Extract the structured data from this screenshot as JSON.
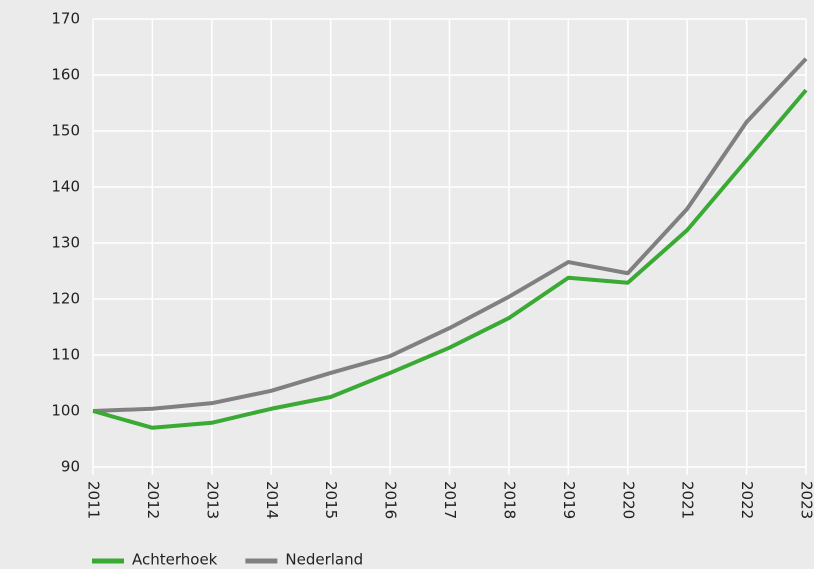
{
  "chart_data": {
    "type": "line",
    "x": [
      "2011",
      "2012",
      "2013",
      "2014",
      "2015",
      "2016",
      "2017",
      "2018",
      "2019",
      "2020",
      "2021",
      "2022",
      "2023"
    ],
    "series": [
      {
        "name": "Achterhoek",
        "color": "#3aaa35",
        "values": [
          100,
          97.0,
          97.9,
          100.4,
          102.5,
          106.8,
          111.3,
          116.6,
          123.8,
          122.9,
          132.3,
          144.8,
          157.3
        ]
      },
      {
        "name": "Nederland",
        "color": "#808080",
        "values": [
          100,
          100.4,
          101.4,
          103.6,
          106.8,
          109.8,
          114.8,
          120.4,
          126.6,
          124.6,
          136.1,
          151.6,
          162.9
        ]
      }
    ],
    "ylim": [
      90,
      170
    ],
    "yticks": [
      90,
      100,
      110,
      120,
      130,
      140,
      150,
      160,
      170
    ],
    "grid": true,
    "legend": "bottom-left"
  }
}
